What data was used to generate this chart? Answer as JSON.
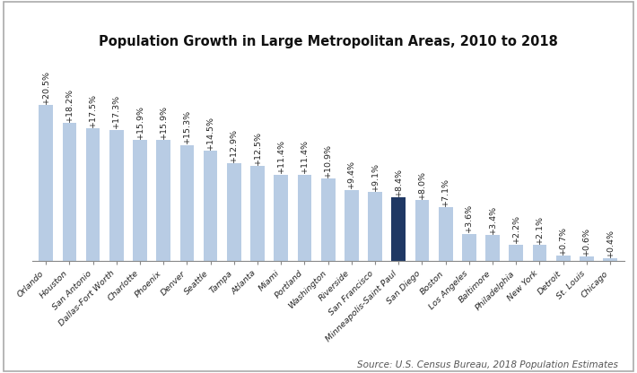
{
  "title": "Population Growth in Large Metropolitan Areas, 2010 to 2018",
  "source": "Source: U.S. Census Bureau, 2018 Population Estimates",
  "categories": [
    "Orlando",
    "Houston",
    "San Antonio",
    "Dallas-Fort Worth",
    "Charlotte",
    "Phoenix",
    "Denver",
    "Seattle",
    "Tampa",
    "Atlanta",
    "Miami",
    "Portland",
    "Washington",
    "Riverside",
    "San Francisco",
    "Minneapolis-Saint Paul",
    "San Diego",
    "Boston",
    "Los Angeles",
    "Baltimore",
    "Philadelphia",
    "New York",
    "Detroit",
    "St. Louis",
    "Chicago"
  ],
  "values": [
    20.5,
    18.2,
    17.5,
    17.3,
    15.9,
    15.9,
    15.3,
    14.5,
    12.9,
    12.5,
    11.4,
    11.4,
    10.9,
    9.4,
    9.1,
    8.4,
    8.0,
    7.1,
    3.6,
    3.4,
    2.2,
    2.1,
    0.7,
    0.6,
    0.4
  ],
  "labels": [
    "+20.5%",
    "+18.2%",
    "+17.5%",
    "+17.3%",
    "+15.9%",
    "+15.9%",
    "+15.3%",
    "+14.5%",
    "+12.9%",
    "+12.5%",
    "+11.4%",
    "+11.4%",
    "+10.9%",
    "+9.4%",
    "+9.1%",
    "+8.4%",
    "+8.0%",
    "+7.1%",
    "+3.6%",
    "+3.4%",
    "+2.2%",
    "+2.1%",
    "+0.7%",
    "+0.6%",
    "+0.4%"
  ],
  "highlight_index": 15,
  "bar_color": "#b8cce4",
  "highlight_color": "#1f3864",
  "background_color": "#ffffff",
  "border_color": "#aaaaaa",
  "title_fontsize": 10.5,
  "label_fontsize": 6.8,
  "tick_fontsize": 6.8,
  "source_fontsize": 7.5
}
